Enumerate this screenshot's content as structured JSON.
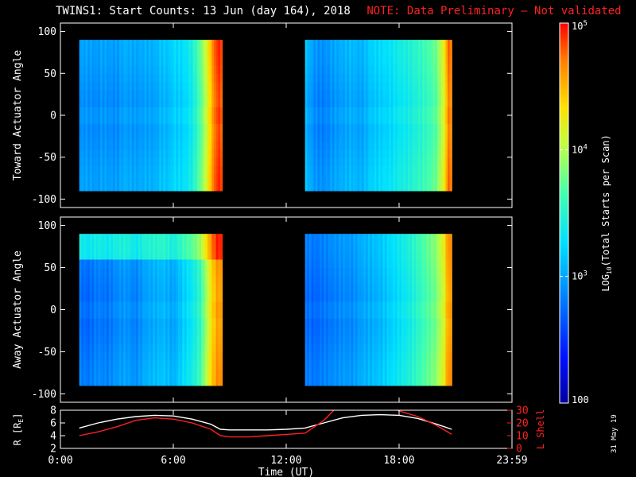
{
  "header": {
    "title": "TWINS1: Start Counts: 13 Jun (day 164), 2018",
    "note": "NOTE: Data Preliminary – Not validated",
    "note_color": "#ff2020"
  },
  "date_stamp": "31 May 19",
  "chart_data": [
    {
      "type": "heatmap",
      "panel": "top",
      "ylabel": "Toward Actuator Angle",
      "ylim": [
        -110,
        110
      ],
      "yticks": [
        100,
        50,
        0,
        -50,
        -100
      ],
      "x_units": "hours UT",
      "data_extent": {
        "y": [
          -90,
          90
        ]
      },
      "segments": [
        {
          "x": [
            1.0,
            8.6
          ],
          "columns": [
            [
              1.0,
              2.9
            ],
            [
              1.2,
              2.95
            ],
            [
              2.0,
              2.9
            ],
            [
              2.2,
              2.95
            ],
            [
              3.0,
              2.9
            ],
            [
              3.4,
              3.0
            ],
            [
              4.0,
              2.95
            ],
            [
              4.5,
              3.0
            ],
            [
              5.0,
              3.0
            ],
            [
              5.4,
              3.1
            ],
            [
              5.8,
              3.1
            ],
            [
              6.0,
              3.2
            ],
            [
              6.4,
              3.2
            ],
            [
              6.8,
              3.3
            ],
            [
              7.1,
              3.45
            ],
            [
              7.4,
              3.7
            ],
            [
              7.7,
              4.0
            ],
            [
              7.9,
              4.3
            ],
            [
              8.1,
              4.6
            ],
            [
              8.3,
              4.85
            ],
            [
              8.6,
              4.85
            ]
          ]
        },
        {
          "x": [
            13.0,
            20.8
          ],
          "columns": [
            [
              13.0,
              3.1
            ],
            [
              13.5,
              2.9
            ],
            [
              14.0,
              2.85
            ],
            [
              14.5,
              2.95
            ],
            [
              15.0,
              3.0
            ],
            [
              15.5,
              3.05
            ],
            [
              16.0,
              3.0
            ],
            [
              16.5,
              3.15
            ],
            [
              17.0,
              3.2
            ],
            [
              17.5,
              3.25
            ],
            [
              18.0,
              3.35
            ],
            [
              18.5,
              3.4
            ],
            [
              19.0,
              3.5
            ],
            [
              19.5,
              3.6
            ],
            [
              20.0,
              3.75
            ],
            [
              20.4,
              4.2
            ],
            [
              20.6,
              4.7
            ],
            [
              20.8,
              4.7
            ]
          ]
        }
      ]
    },
    {
      "type": "heatmap",
      "panel": "middle",
      "ylabel": "Away Actuator Angle",
      "ylim": [
        -110,
        110
      ],
      "yticks": [
        100,
        50,
        0,
        -50,
        -100
      ],
      "x_units": "hours UT",
      "data_extent": {
        "y": [
          -90,
          90
        ]
      },
      "segments": [
        {
          "x": [
            1.0,
            8.6
          ],
          "columns": [
            [
              1.0,
              2.8
            ],
            [
              1.5,
              2.75
            ],
            [
              2.0,
              2.85
            ],
            [
              2.5,
              2.8
            ],
            [
              3.0,
              2.9
            ],
            [
              3.5,
              2.95
            ],
            [
              4.0,
              2.85
            ],
            [
              4.5,
              3.0
            ],
            [
              5.0,
              3.05
            ],
            [
              5.5,
              3.1
            ],
            [
              6.0,
              3.0
            ],
            [
              6.5,
              3.2
            ],
            [
              7.0,
              3.35
            ],
            [
              7.4,
              3.55
            ],
            [
              7.7,
              3.9
            ],
            [
              8.0,
              4.3
            ],
            [
              8.3,
              4.6
            ],
            [
              8.6,
              4.6
            ]
          ]
        },
        {
          "x": [
            13.0,
            20.8
          ],
          "columns": [
            [
              13.0,
              2.8
            ],
            [
              13.5,
              2.75
            ],
            [
              14.0,
              2.8
            ],
            [
              14.5,
              2.85
            ],
            [
              15.0,
              2.9
            ],
            [
              15.5,
              2.9
            ],
            [
              16.0,
              3.0
            ],
            [
              16.5,
              3.05
            ],
            [
              17.0,
              3.1
            ],
            [
              17.5,
              3.2
            ],
            [
              18.0,
              3.3
            ],
            [
              18.5,
              3.4
            ],
            [
              19.0,
              3.55
            ],
            [
              19.5,
              3.7
            ],
            [
              20.0,
              3.85
            ],
            [
              20.4,
              4.2
            ],
            [
              20.6,
              4.6
            ],
            [
              20.8,
              4.6
            ]
          ]
        }
      ],
      "features": {
        "band_y": [
          65,
          90
        ],
        "band_log_boost": 0.55,
        "band_x": [
          1.0,
          8.6
        ]
      }
    },
    {
      "type": "line",
      "panel": "bottom",
      "ylabel": "R [R_E]",
      "ylim": [
        2,
        8
      ],
      "yticks": [
        2,
        4,
        6,
        8
      ],
      "y2label": "L Shell",
      "y2lim": [
        0,
        30
      ],
      "y2ticks": [
        0,
        10,
        20,
        30
      ],
      "series": [
        {
          "color": "#ffffff",
          "x": [
            1.0,
            2.0,
            3.0,
            4.0,
            5.0,
            6.0,
            7.0,
            8.0,
            8.5,
            9.0,
            10.0,
            11.0,
            12.0,
            13.0,
            14.0,
            15.0,
            16.0,
            17.0,
            18.0,
            19.0,
            20.0,
            20.8
          ],
          "y": [
            5.2,
            6.0,
            6.6,
            7.0,
            7.2,
            7.1,
            6.6,
            5.8,
            5.0,
            4.9,
            4.9,
            4.9,
            5.0,
            5.2,
            6.0,
            6.8,
            7.2,
            7.3,
            7.2,
            6.7,
            5.8,
            5.0
          ]
        },
        {
          "color": "#ff2020",
          "axis": "right",
          "x": [
            1.0,
            2.0,
            3.0,
            4.0,
            5.0,
            6.0,
            7.0,
            8.0,
            8.5,
            9.0,
            10.0,
            11.0,
            12.0,
            13.0,
            14.0,
            14.8,
            17.0,
            19.0,
            20.0,
            20.8
          ],
          "y": [
            10.0,
            13.0,
            17.0,
            22.0,
            24.0,
            23.0,
            20.0,
            15.0,
            10.0,
            9.0,
            9.0,
            10.0,
            11.0,
            12.0,
            22.0,
            34.0,
            34.0,
            25.0,
            18.0,
            11.0
          ]
        }
      ]
    }
  ],
  "color_scale": {
    "label_prefix": "LOG",
    "label_sub": "10",
    "label_suffix": "(Total Starts per Scan)",
    "range_log": [
      2,
      5
    ],
    "ticks": [
      {
        "log": 5,
        "base": "10",
        "exp": "5"
      },
      {
        "log": 4,
        "base": "10",
        "exp": "4"
      },
      {
        "log": 3,
        "base": "10",
        "exp": "3"
      },
      {
        "log": 2,
        "base": "100",
        "exp": ""
      }
    ]
  },
  "x_axis": {
    "label": "Time (UT)",
    "xlim": [
      0,
      24
    ],
    "ticks": [
      {
        "v": 0,
        "label": "0:00"
      },
      {
        "v": 6,
        "label": "6:00"
      },
      {
        "v": 12,
        "label": "12:00"
      },
      {
        "v": 18,
        "label": "18:00"
      },
      {
        "v": 24,
        "label": "23:59"
      }
    ]
  }
}
